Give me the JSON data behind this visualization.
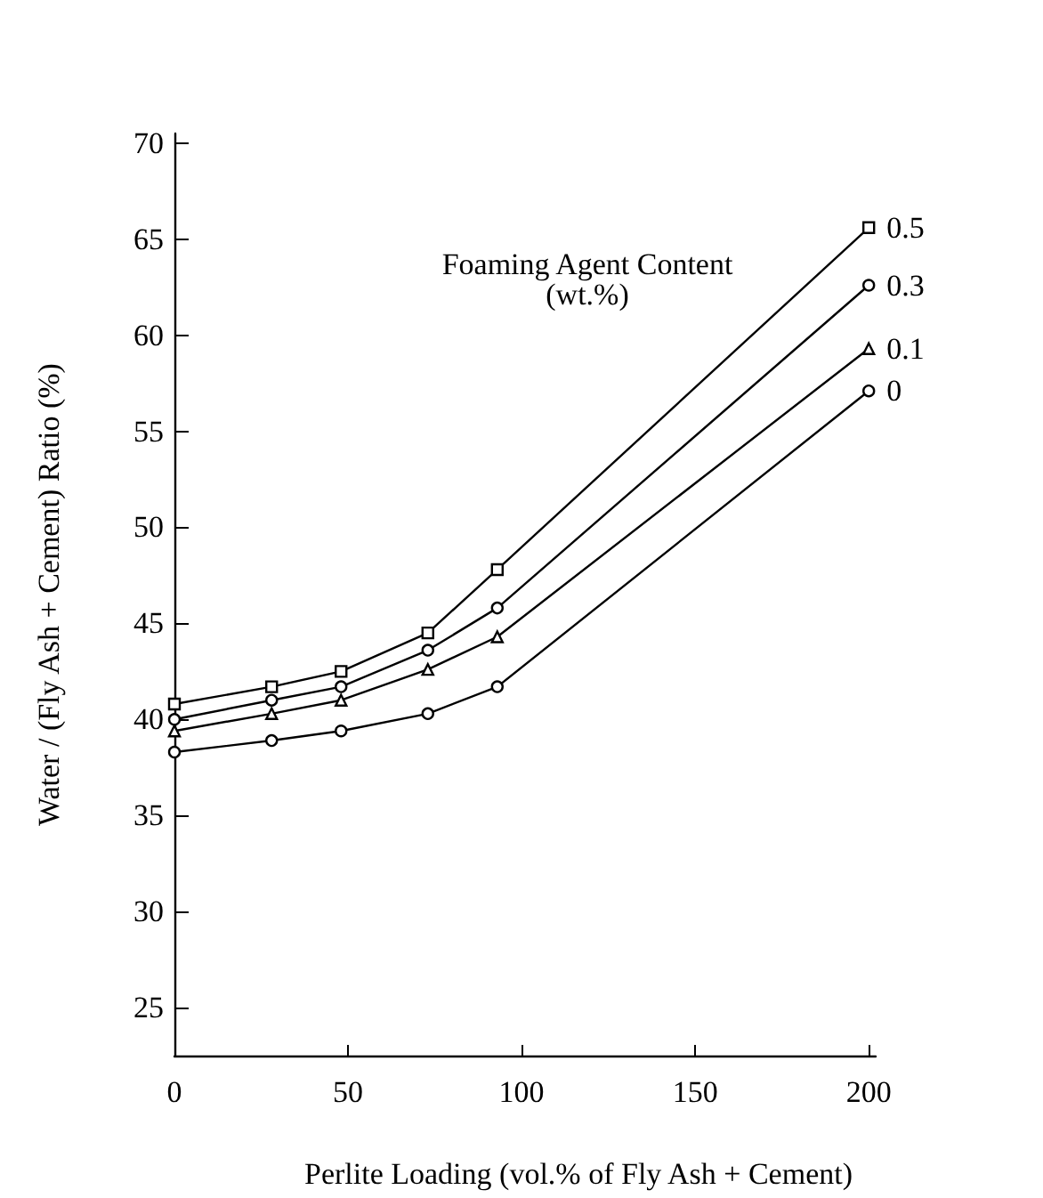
{
  "chart_data": {
    "type": "line",
    "xlabel": "Perlite Loading (vol.% of Fly Ash + Cement)",
    "ylabel": "Water / (Fly Ash + Cement) Ratio (%)",
    "annotations": [
      "Foaming Agent Content\n(wt.%)"
    ],
    "x": [
      0,
      28,
      48,
      73,
      93,
      200
    ],
    "series": [
      {
        "name": "0.5",
        "color": "#000000",
        "marker": "square",
        "values": [
          40.8,
          41.7,
          42.5,
          44.5,
          47.8,
          65.6
        ]
      },
      {
        "name": "0.3",
        "color": "#000000",
        "marker": "circle",
        "values": [
          40.0,
          41.0,
          41.7,
          43.6,
          45.8,
          62.6
        ]
      },
      {
        "name": "0.1",
        "color": "#000000",
        "marker": "triangle",
        "values": [
          39.4,
          40.3,
          41.0,
          42.6,
          44.3,
          59.3
        ]
      },
      {
        "name": "0",
        "color": "#000000",
        "marker": "circle",
        "values": [
          38.3,
          38.9,
          39.4,
          40.3,
          41.7,
          57.1
        ]
      }
    ],
    "xlim": [
      0,
      202
    ],
    "xticks": [
      0,
      50,
      100,
      150,
      200
    ],
    "ylim": [
      22.5,
      70.5
    ],
    "yticks": [
      25,
      30,
      35,
      40,
      45,
      50,
      55,
      60,
      65,
      70
    ],
    "grid": false,
    "legend": false,
    "line_style": "solid"
  }
}
